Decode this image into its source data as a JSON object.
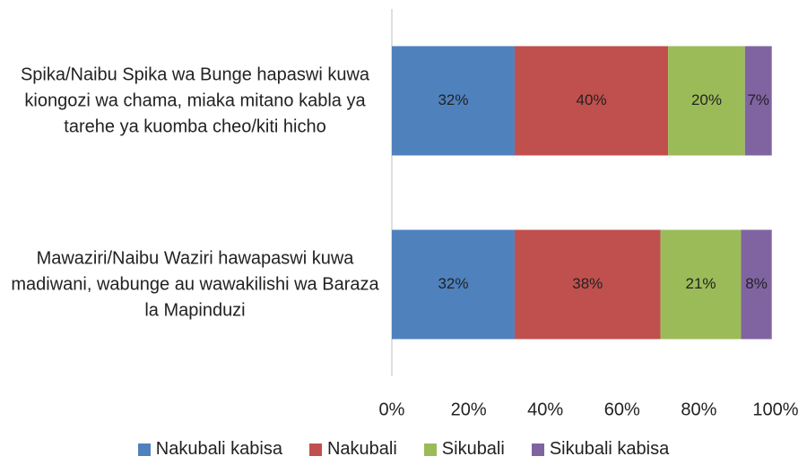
{
  "chart_data": {
    "type": "stacked-barh",
    "categories": [
      "Spika/Naibu Spika wa Bunge hapaswi kuwa kiongozi wa chama, miaka mitano kabla ya tarehe ya kuomba cheo/kiti hicho",
      "Mawaziri/Naibu Waziri hawapaswi kuwa madiwani, wabunge au wawakilishi wa Baraza la Mapinduzi"
    ],
    "series": [
      {
        "name": "Nakubali kabisa",
        "color": "#4f81bd",
        "values": [
          32,
          32
        ],
        "value_labels": [
          "32%",
          "32%"
        ]
      },
      {
        "name": "Nakubali",
        "color": "#c0504d",
        "values": [
          40,
          38
        ],
        "value_labels": [
          "40%",
          "38%"
        ]
      },
      {
        "name": "Sikubali",
        "color": "#9bbb59",
        "values": [
          20,
          21
        ],
        "value_labels": [
          "20%",
          "21%"
        ]
      },
      {
        "name": "Sikubali kabisa",
        "color": "#8064a2",
        "values": [
          7,
          8
        ],
        "value_labels": [
          "7%",
          "8%"
        ]
      }
    ],
    "xlim": [
      0,
      100
    ],
    "xticks": [
      {
        "value": 0,
        "label": "0%"
      },
      {
        "value": 20,
        "label": "20%"
      },
      {
        "value": 40,
        "label": "40%"
      },
      {
        "value": 60,
        "label": "60%"
      },
      {
        "value": 80,
        "label": "80%"
      },
      {
        "value": 100,
        "label": "100%"
      }
    ],
    "legend": "bottom"
  }
}
